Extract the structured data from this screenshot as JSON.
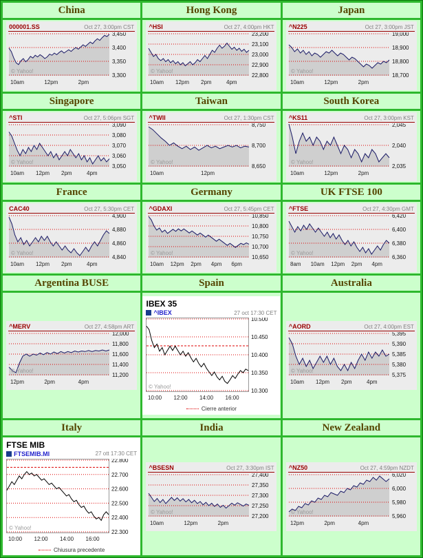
{
  "watermark": "© Yahoo!",
  "colors": {
    "border_green": "#2eb82e",
    "border_dark": "#0a7a0a",
    "cell_green": "#ccffcc",
    "header_text": "#554400",
    "symbol_maroon": "#990000",
    "timestamp_gray": "#808080",
    "chart_bg": "#ececec",
    "area_fill": "#cfcfcf",
    "line_navy": "#1a1a66",
    "gridline_red": "#dd0000",
    "watermark_gray": "#9a9a9a",
    "link_blue": "#2323cc",
    "legend_swatch": "#1a3c8c",
    "plot_border": "#999999"
  },
  "chart_data": [
    {
      "country": "China",
      "type": "line",
      "variant": "small",
      "symbol": "000001.SS",
      "timestamp": "Oct 27, 3:00pm CST",
      "x_labels": [
        "10am",
        "12pm",
        "2pm"
      ],
      "y_tick_labels": [
        "3,300",
        "3,350",
        "3,400",
        "3,450"
      ],
      "y_min": 3300,
      "y_max": 3450,
      "values": [
        3398,
        3385,
        3362,
        3345,
        3338,
        3352,
        3360,
        3348,
        3356,
        3368,
        3362,
        3372,
        3366,
        3374,
        3368,
        3360,
        3366,
        3376,
        3372,
        3380,
        3374,
        3382,
        3388,
        3380,
        3386,
        3392,
        3386,
        3394,
        3400,
        3394,
        3402,
        3410,
        3404,
        3412,
        3420,
        3414,
        3424,
        3432,
        3426,
        3436,
        3444,
        3440,
        3448
      ]
    },
    {
      "country": "Hong Kong",
      "type": "line",
      "variant": "small",
      "symbol": "^HSI",
      "timestamp": "Oct 27, 4:00pm HKT",
      "x_labels": [
        "10am",
        "12pm",
        "2pm",
        "4pm"
      ],
      "y_tick_labels": [
        "22,800",
        "22,900",
        "23,000",
        "23,100",
        "23,200"
      ],
      "y_min": 22800,
      "y_max": 23200,
      "values": [
        23060,
        23020,
        22980,
        23000,
        22960,
        22940,
        22960,
        22930,
        22950,
        22920,
        22940,
        22910,
        22930,
        22900,
        22920,
        22890,
        22910,
        22930,
        22900,
        22920,
        22950,
        22930,
        22960,
        22990,
        22960,
        23000,
        23040,
        23020,
        23060,
        23090,
        23060,
        23080,
        23110,
        23080,
        23050,
        23070,
        23040,
        23060,
        23030,
        23050,
        23020,
        23040
      ]
    },
    {
      "country": "Japan",
      "type": "line",
      "variant": "small",
      "symbol": "^N225",
      "timestamp": "Oct 27, 3:00pm JST",
      "x_labels": [
        "10am",
        "12pm",
        "2pm"
      ],
      "y_tick_labels": [
        "18,700",
        "18,800",
        "18,900",
        "19,000"
      ],
      "y_min": 18700,
      "y_max": 19000,
      "values": [
        18920,
        18900,
        18870,
        18890,
        18860,
        18880,
        18850,
        18870,
        18840,
        18860,
        18850,
        18830,
        18850,
        18870,
        18860,
        18880,
        18860,
        18840,
        18860,
        18850,
        18830,
        18810,
        18830,
        18820,
        18800,
        18780,
        18760,
        18780,
        18770,
        18750,
        18770,
        18790,
        18780,
        18800,
        18790,
        18810
      ]
    },
    {
      "country": "Singapore",
      "type": "line",
      "variant": "small",
      "symbol": "^STI",
      "timestamp": "Oct 27, 5:06pm SGT",
      "x_labels": [
        "10am",
        "12pm",
        "2pm",
        "4pm"
      ],
      "y_tick_labels": [
        "3,050",
        "3,060",
        "3,070",
        "3,080",
        "3,090"
      ],
      "y_min": 3050,
      "y_max": 3090,
      "values": [
        3083,
        3079,
        3072,
        3065,
        3060,
        3066,
        3062,
        3068,
        3064,
        3070,
        3066,
        3072,
        3068,
        3064,
        3060,
        3064,
        3058,
        3062,
        3056,
        3060,
        3064,
        3060,
        3066,
        3062,
        3058,
        3062,
        3056,
        3060,
        3054,
        3058,
        3052,
        3056,
        3060,
        3055,
        3058,
        3054,
        3057
      ]
    },
    {
      "country": "Taiwan",
      "type": "line",
      "variant": "small",
      "symbol": "^TWII",
      "timestamp": "Oct 27, 1:30pm CST",
      "x_labels": [
        "10am",
        "12pm"
      ],
      "y_tick_labels": [
        "8,650",
        "8,700",
        "8,750"
      ],
      "y_min": 8650,
      "y_max": 8750,
      "values": [
        8745,
        8738,
        8728,
        8718,
        8710,
        8700,
        8706,
        8698,
        8692,
        8698,
        8690,
        8696,
        8688,
        8694,
        8700,
        8694,
        8698,
        8692,
        8696,
        8700,
        8696,
        8700,
        8694,
        8698,
        8696
      ]
    },
    {
      "country": "South Korea",
      "type": "line",
      "variant": "small",
      "symbol": "^KS11",
      "timestamp": "Oct 27, 3:00pm KST",
      "x_labels": [
        "10am",
        "12pm",
        "2pm"
      ],
      "y_tick_labels": [
        "2,035",
        "2,040",
        "2,045"
      ],
      "y_min": 2035,
      "y_max": 2045,
      "values": [
        2046,
        2042,
        2038,
        2041,
        2043,
        2041,
        2042,
        2040,
        2042,
        2041,
        2039,
        2041,
        2040,
        2042,
        2040,
        2038,
        2040,
        2039,
        2037,
        2039,
        2038,
        2036,
        2038,
        2037,
        2039,
        2038,
        2036,
        2037,
        2038,
        2037
      ]
    },
    {
      "country": "France",
      "type": "line",
      "variant": "small",
      "symbol": "CAC40",
      "timestamp": "Oct 27, 5:30pm CET",
      "x_labels": [
        "10am",
        "12pm",
        "2pm",
        "4pm"
      ],
      "y_tick_labels": [
        "4,840",
        "4,860",
        "4,880",
        "4,900"
      ],
      "y_min": 4840,
      "y_max": 4900,
      "values": [
        4898,
        4888,
        4872,
        4862,
        4868,
        4858,
        4864,
        4856,
        4862,
        4868,
        4862,
        4870,
        4864,
        4870,
        4862,
        4856,
        4862,
        4856,
        4850,
        4856,
        4850,
        4846,
        4852,
        4846,
        4842,
        4848,
        4854,
        4848,
        4856,
        4862,
        4856,
        4864,
        4872,
        4878,
        4874
      ]
    },
    {
      "country": "Germany",
      "type": "line",
      "variant": "small",
      "symbol": "^GDAXI",
      "timestamp": "Oct 27, 5:45pm CET",
      "x_labels": [
        "10am",
        "12pm",
        "2pm",
        "4pm",
        "6pm"
      ],
      "y_tick_labels": [
        "10,650",
        "10,700",
        "10,750",
        "10,800",
        "10,850"
      ],
      "y_min": 10650,
      "y_max": 10850,
      "values": [
        10846,
        10830,
        10800,
        10780,
        10790,
        10770,
        10780,
        10764,
        10774,
        10784,
        10774,
        10786,
        10776,
        10786,
        10776,
        10766,
        10776,
        10766,
        10756,
        10766,
        10756,
        10746,
        10756,
        10746,
        10736,
        10726,
        10736,
        10726,
        10716,
        10706,
        10716,
        10706,
        10696,
        10706,
        10716,
        10710,
        10718,
        10712
      ]
    },
    {
      "country": "UK FTSE 100",
      "type": "line",
      "variant": "small",
      "symbol": "^FTSE",
      "timestamp": "Oct 27, 4:30pm GMT",
      "x_labels": [
        "8am",
        "10am",
        "12pm",
        "2pm",
        "4pm"
      ],
      "y_tick_labels": [
        "6,360",
        "6,380",
        "6,400",
        "6,420"
      ],
      "y_min": 6360,
      "y_max": 6420,
      "values": [
        6412,
        6404,
        6396,
        6404,
        6398,
        6406,
        6400,
        6408,
        6402,
        6396,
        6402,
        6396,
        6390,
        6396,
        6388,
        6394,
        6386,
        6392,
        6384,
        6378,
        6384,
        6376,
        6382,
        6374,
        6368,
        6374,
        6366,
        6372,
        6364,
        6370,
        6376,
        6370,
        6378,
        6384,
        6380
      ]
    },
    {
      "country": "Argentina BUSE",
      "type": "line",
      "variant": "small",
      "symbol": "^MERV",
      "timestamp": "Oct 27, 4:58pm ART",
      "x_labels": [
        "12pm",
        "2pm",
        "4pm"
      ],
      "y_tick_labels": [
        "11,200",
        "11,400",
        "11,600",
        "11,800",
        "12,000"
      ],
      "y_min": 11200,
      "y_max": 12000,
      "values": [
        11350,
        11280,
        11240,
        11420,
        11560,
        11600,
        11560,
        11600,
        11580,
        11620,
        11590,
        11630,
        11600,
        11640,
        11610,
        11650,
        11620,
        11650,
        11630,
        11660,
        11640,
        11660,
        11650,
        11670,
        11650,
        11670,
        11660,
        11680,
        11660,
        11680
      ]
    },
    {
      "country": "Spain",
      "type": "line",
      "variant": "medium",
      "title": "IBEX 35",
      "symbol": "^IBEX",
      "timestamp": "27 oct 17:30 CET",
      "x_labels": [
        "10:00",
        "12:00",
        "14:00",
        "16:00"
      ],
      "y_tick_labels": [
        "10.300",
        "10.350",
        "10.400",
        "10.450",
        "10.500"
      ],
      "y_min": 10300,
      "y_max": 10500,
      "prev_close": 10425,
      "footer_label": "Cierre anterior",
      "values": [
        10480,
        10470,
        10440,
        10420,
        10430,
        10410,
        10420,
        10400,
        10412,
        10424,
        10412,
        10424,
        10412,
        10400,
        10410,
        10396,
        10406,
        10392,
        10380,
        10390,
        10376,
        10366,
        10376,
        10362,
        10352,
        10342,
        10352,
        10338,
        10330,
        10340,
        10326,
        10320,
        10330,
        10342,
        10334,
        10346,
        10356,
        10350,
        10360,
        10356
      ]
    },
    {
      "country": "Australia",
      "type": "line",
      "variant": "small",
      "symbol": "^AORD",
      "timestamp": "Oct 27, 4:00pm EST",
      "x_labels": [
        "10am",
        "12pm",
        "2pm",
        "4pm"
      ],
      "y_tick_labels": [
        "5,375",
        "5,380",
        "5,385",
        "5,390",
        "5,395"
      ],
      "y_min": 5375,
      "y_max": 5395,
      "values": [
        5393,
        5390,
        5384,
        5380,
        5383,
        5379,
        5382,
        5378,
        5381,
        5384,
        5381,
        5384,
        5380,
        5383,
        5379,
        5377,
        5380,
        5377,
        5381,
        5378,
        5382,
        5385,
        5382,
        5386,
        5383,
        5386,
        5384,
        5387,
        5384,
        5385
      ]
    },
    {
      "country": "Italy",
      "type": "line",
      "variant": "medium",
      "title": "FTSE MIB",
      "symbol": "FTSEMIB.MI",
      "timestamp": "27 ott 17:30 CET",
      "x_labels": [
        "10:00",
        "12:00",
        "14:00",
        "16:00"
      ],
      "y_tick_labels": [
        "22.300",
        "22.400",
        "22.500",
        "22.600",
        "22.700",
        "22.800"
      ],
      "y_min": 22300,
      "y_max": 22800,
      "prev_close": 22750,
      "footer_label": "Chiusura precedente",
      "values": [
        22590,
        22620,
        22650,
        22630,
        22660,
        22690,
        22670,
        22700,
        22720,
        22700,
        22710,
        22690,
        22700,
        22680,
        22660,
        22670,
        22650,
        22630,
        22640,
        22620,
        22600,
        22610,
        22590,
        22570,
        22550,
        22560,
        22530,
        22510,
        22520,
        22490,
        22470,
        22480,
        22450,
        22430,
        22440,
        22410,
        22390,
        22400,
        22380,
        22420,
        22440,
        22420
      ]
    },
    {
      "country": "India",
      "type": "line",
      "variant": "small",
      "symbol": "^BSESN",
      "timestamp": "Oct 27, 3:30pm IST",
      "x_labels": [
        "10am",
        "12pm",
        "2pm"
      ],
      "y_tick_labels": [
        "27,200",
        "27,250",
        "27,300",
        "27,350",
        "27,400"
      ],
      "y_min": 27200,
      "y_max": 27400,
      "values": [
        27310,
        27290,
        27270,
        27285,
        27265,
        27280,
        27260,
        27275,
        27290,
        27275,
        27288,
        27272,
        27284,
        27268,
        27280,
        27264,
        27276,
        27260,
        27270,
        27254,
        27266,
        27250,
        27262,
        27246,
        27258,
        27242,
        27252,
        27238,
        27250,
        27262,
        27252,
        27264,
        27256,
        27248,
        27258,
        27252
      ]
    },
    {
      "country": "New Zealand",
      "type": "line",
      "variant": "small",
      "symbol": "^NZ50",
      "timestamp": "Oct 27, 4:59pm NZDT",
      "x_labels": [
        "12pm",
        "2pm",
        "4pm"
      ],
      "y_tick_labels": [
        "5,960",
        "5,980",
        "6,000",
        "6,020"
      ],
      "y_min": 5960,
      "y_max": 6020,
      "values": [
        5966,
        5970,
        5968,
        5974,
        5972,
        5978,
        5976,
        5982,
        5980,
        5986,
        5984,
        5990,
        5988,
        5994,
        5992,
        5990,
        5996,
        5994,
        6000,
        5998,
        6004,
        6002,
        6008,
        6006,
        6012,
        6010,
        6016,
        6012,
        6018,
        6014,
        6010,
        6014
      ]
    }
  ]
}
